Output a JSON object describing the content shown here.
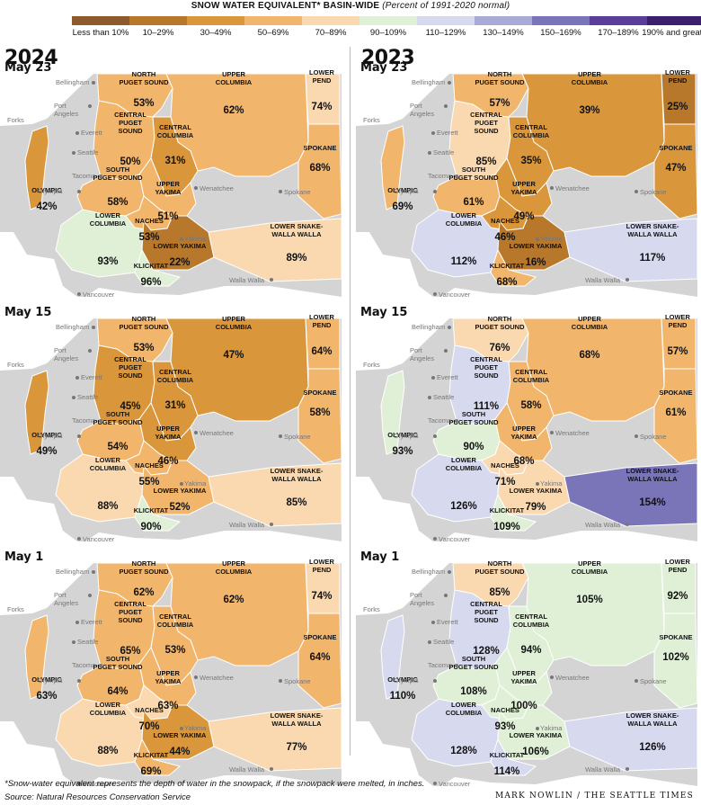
{
  "title": "SNOW WATER EQUIVALENT* BASIN-WIDE",
  "subtitle": "(Percent of 1991-2020 normal)",
  "legend": [
    {
      "label": "Less than 10%",
      "color": "#8c5a2b"
    },
    {
      "label": "10–29%",
      "color": "#b7782c"
    },
    {
      "label": "30–49%",
      "color": "#d9963a"
    },
    {
      "label": "50–69%",
      "color": "#f1b56c"
    },
    {
      "label": "70–89%",
      "color": "#fbd9b0"
    },
    {
      "label": "90–109%",
      "color": "#dff0d6"
    },
    {
      "label": "110–129%",
      "color": "#d7d9ef"
    },
    {
      "label": "130–149%",
      "color": "#a9aad6"
    },
    {
      "label": "150–169%",
      "color": "#7a74b8"
    },
    {
      "label": "170–189%",
      "color": "#5a3f9a"
    },
    {
      "label": "190% and greater",
      "color": "#3b1f6e"
    }
  ],
  "basin_names": {
    "olympic": "OLYMPIC",
    "npuget": "NORTH|PUGET SOUND",
    "cpuget": "CENTRAL|PUGET|SOUND",
    "spuget": "SOUTH|PUGET SOUND",
    "lcol": "LOWER|COLUMBIA",
    "ucol": "UPPER|COLUMBIA",
    "ccol": "CENTRAL|COLUMBIA",
    "uyak": "UPPER|YAKIMA",
    "naches": "NACHES",
    "lyak": "LOWER YAKIMA",
    "klick": "KLICKITAT",
    "lpend": "LOWER|PEND",
    "spokane": "SPOKANE",
    "lsnake": "LOWER SNAKE-|WALLA WALLA"
  },
  "cities": [
    "Bellingham",
    "Port|Angeles",
    "Forks",
    "Everett",
    "Seattle",
    "Tacoma",
    "Olympia",
    "Wenatchee",
    "Yakima",
    "Spokane",
    "Walla Walla",
    "Vancouver"
  ],
  "years": [
    {
      "year": "2024",
      "panels": [
        {
          "date": "May 23",
          "values": {
            "olympic": 42,
            "npuget": 53,
            "cpuget": 50,
            "spuget": 58,
            "lcol": 93,
            "ucol": 62,
            "ccol": 31,
            "uyak": 51,
            "naches": 53,
            "lyak": 22,
            "klick": 96,
            "lpend": 74,
            "spokane": 68,
            "lsnake": 89
          }
        },
        {
          "date": "May 15",
          "values": {
            "olympic": 49,
            "npuget": 53,
            "cpuget": 45,
            "spuget": 54,
            "lcol": 88,
            "ucol": 47,
            "ccol": 31,
            "uyak": 46,
            "naches": 55,
            "lyak": 52,
            "klick": 90,
            "lpend": 64,
            "spokane": 58,
            "lsnake": 85
          }
        },
        {
          "date": "May 1",
          "values": {
            "olympic": 63,
            "npuget": 62,
            "cpuget": 65,
            "spuget": 64,
            "lcol": 88,
            "ucol": 62,
            "ccol": 53,
            "uyak": 63,
            "naches": 70,
            "lyak": 44,
            "klick": 69,
            "lpend": 74,
            "spokane": 64,
            "lsnake": 77
          }
        }
      ]
    },
    {
      "year": "2023",
      "panels": [
        {
          "date": "May 23",
          "values": {
            "olympic": 69,
            "npuget": 57,
            "cpuget": 85,
            "spuget": 61,
            "lcol": 112,
            "ucol": 39,
            "ccol": 35,
            "uyak": 49,
            "naches": 46,
            "lyak": 16,
            "klick": 68,
            "lpend": 25,
            "spokane": 47,
            "lsnake": 117
          }
        },
        {
          "date": "May 15",
          "values": {
            "olympic": 93,
            "npuget": 76,
            "cpuget": 111,
            "spuget": 90,
            "lcol": 126,
            "ucol": 68,
            "ccol": 58,
            "uyak": 68,
            "naches": 71,
            "lyak": 79,
            "klick": 109,
            "lpend": 57,
            "spokane": 61,
            "lsnake": 154
          }
        },
        {
          "date": "May 1",
          "values": {
            "olympic": 110,
            "npuget": 85,
            "cpuget": 128,
            "spuget": 108,
            "lcol": 128,
            "ucol": 105,
            "ccol": 94,
            "uyak": 100,
            "naches": 93,
            "lyak": 106,
            "klick": 114,
            "lpend": 92,
            "spokane": 102,
            "lsnake": 126
          }
        }
      ]
    }
  ],
  "footnote": "*Snow-water equivalent represents the depth of water in the snowpack, if the snowpack were melted, in inches.",
  "source": "Source: Natural Resources Conservation Service",
  "credit": "MARK NOWLIN / THE SEATTLE TIMES",
  "pct_suffix": "%",
  "outside_color": "#d4d4d4",
  "city_color": "#777777"
}
